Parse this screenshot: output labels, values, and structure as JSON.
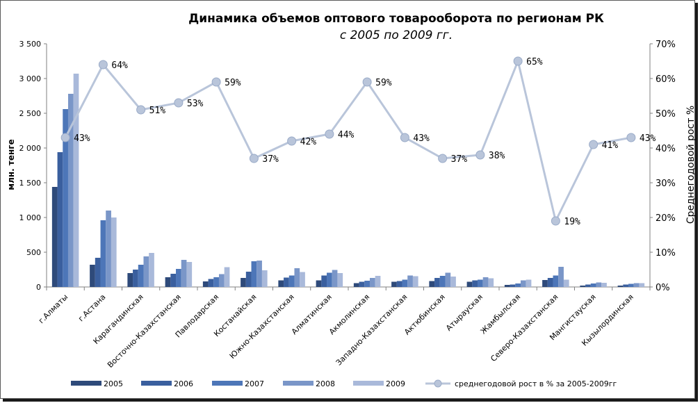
{
  "chart_data": {
    "type": "bar",
    "title": "Динамика объемов оптового товарооборота по регионам РК",
    "subtitle": "с 2005 по 2009 гг.",
    "ylabel": "млн. тенге",
    "y2label": "Среднегодовой рост %",
    "ylim": [
      0,
      3500
    ],
    "y2lim": [
      0,
      70
    ],
    "yticks": [
      "0",
      "500",
      "1 000",
      "1 500",
      "2 000",
      "2 500",
      "3 000",
      "3 500"
    ],
    "y2ticks": [
      "0%",
      "10%",
      "20%",
      "30%",
      "40%",
      "50%",
      "60%",
      "70%"
    ],
    "grid": false,
    "legend_position": "bottom",
    "categories": [
      "г.Алматы",
      "г.Астана",
      "Карагандинская",
      "Восточно-Казахстанская",
      "Павлодарская",
      "Костанайская",
      "Южно-Казахстанская",
      "Алматинская",
      "Акмолинская",
      "Западно-Казахстанская",
      "Актюбинская",
      "Атырауская",
      "Жамбылская",
      "Северо-Казахстанская",
      "Мангистауская",
      "Кызылординская"
    ],
    "series": [
      {
        "name": "2005",
        "color": "#2e4a7a",
        "values": [
          1440,
          320,
          200,
          140,
          80,
          130,
          95,
          95,
          55,
          75,
          85,
          75,
          30,
          100,
          20,
          20
        ]
      },
      {
        "name": "2006",
        "color": "#3a5f9e",
        "values": [
          1940,
          420,
          250,
          190,
          115,
          220,
          135,
          165,
          75,
          85,
          130,
          95,
          35,
          130,
          35,
          35
        ]
      },
      {
        "name": "2007",
        "color": "#4d76b8",
        "values": [
          2560,
          960,
          320,
          260,
          140,
          370,
          165,
          205,
          90,
          105,
          160,
          105,
          50,
          165,
          50,
          45
        ]
      },
      {
        "name": "2008",
        "color": "#7a96c8",
        "values": [
          2780,
          1100,
          440,
          390,
          185,
          380,
          270,
          245,
          130,
          165,
          205,
          140,
          95,
          290,
          65,
          55
        ]
      },
      {
        "name": "2009",
        "color": "#a9b9da",
        "values": [
          3070,
          1000,
          490,
          360,
          285,
          240,
          215,
          200,
          160,
          155,
          150,
          125,
          105,
          105,
          60,
          55
        ]
      }
    ],
    "line_series": {
      "name": "среднегодовой рост в % за 2005-2009гг",
      "color": "#b9c5da",
      "values": [
        43,
        64,
        51,
        53,
        59,
        37,
        42,
        44,
        59,
        43,
        37,
        38,
        65,
        19,
        41,
        43
      ],
      "labels": [
        "43%",
        "64%",
        "51%",
        "53%",
        "59%",
        "37%",
        "42%",
        "44%",
        "59%",
        "43%",
        "37%",
        "38%",
        "65%",
        "19%",
        "41%",
        "43%"
      ]
    }
  }
}
